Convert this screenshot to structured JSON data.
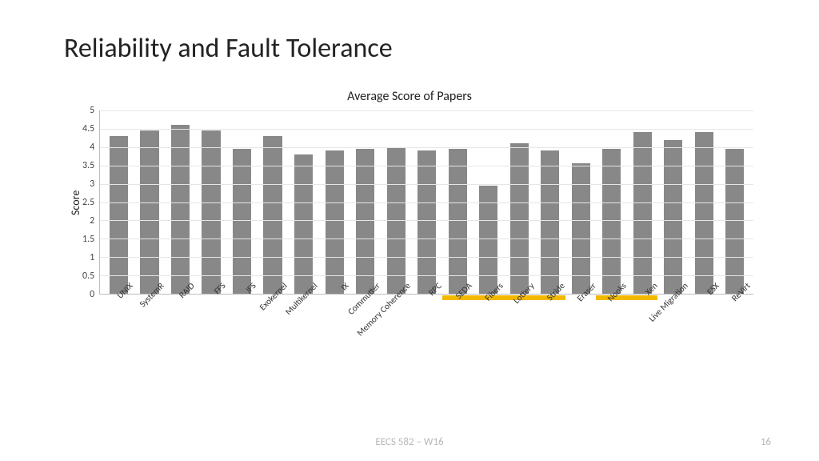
{
  "slide": {
    "title": "Reliability and Fault Tolerance",
    "footer_center": "EECS 582 – W16",
    "page_number": "16"
  },
  "chart": {
    "type": "bar",
    "title": "Average Score of Papers",
    "ylabel": "Score",
    "ylim": [
      0,
      5
    ],
    "ytick_step": 0.5,
    "yticks": [
      "5",
      "4.5",
      "4",
      "3.5",
      "3",
      "2.5",
      "2",
      "1.5",
      "1",
      "0.5",
      "0"
    ],
    "bar_color": "#888888",
    "highlight_color": "#f2b900",
    "grid_color": "#e6e6e6",
    "axis_color": "#bcbcbc",
    "background_color": "#ffffff",
    "title_fontsize": 16,
    "label_fontsize": 14,
    "tick_fontsize": 12,
    "xtick_fontsize": 11,
    "xtick_rotation": -45,
    "bar_width": 0.6,
    "categories": [
      "UNIX",
      "SystemR",
      "RAID",
      "FFS",
      "JFS",
      "Exokernel",
      "Multikernel",
      "IX",
      "Commutter",
      "Memory Coherence",
      "RPC",
      "SEDA",
      "Fibers",
      "Lottery",
      "Stride",
      "Eraser",
      "Nooks",
      "Xen",
      "Live Migration",
      "ESX",
      "ReVirt"
    ],
    "values": [
      4.3,
      4.45,
      4.6,
      4.45,
      3.95,
      4.3,
      3.8,
      3.9,
      3.95,
      4.0,
      3.9,
      3.95,
      2.95,
      4.1,
      3.9,
      3.55,
      3.95,
      4.4,
      4.2,
      4.4,
      3.95
    ],
    "highlighted": [
      false,
      false,
      false,
      false,
      false,
      false,
      false,
      false,
      false,
      false,
      false,
      true,
      true,
      true,
      true,
      false,
      true,
      true,
      false,
      false,
      false
    ]
  }
}
